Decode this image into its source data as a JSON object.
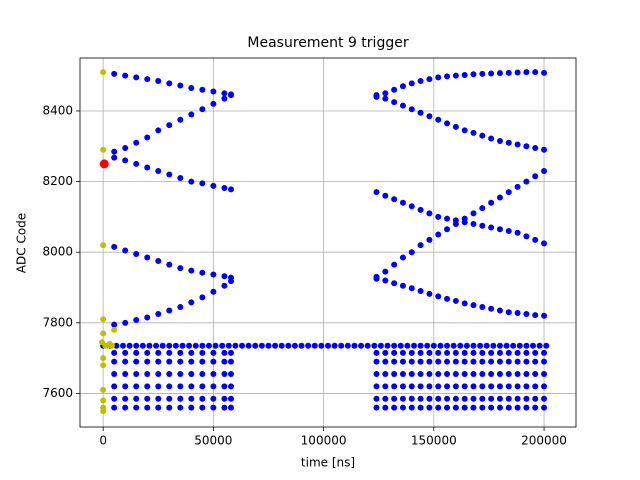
{
  "chart_data": {
    "type": "scatter",
    "title": "Measurement 9 trigger",
    "x_label": "time [ns]",
    "y_label": "ADC Code",
    "xlim": [
      -10500,
      214500
    ],
    "ylim": [
      7505,
      8550
    ],
    "xticks": [
      0,
      50000,
      100000,
      150000,
      200000
    ],
    "yticks": [
      7600,
      7800,
      8000,
      8200,
      8400
    ],
    "grid": true,
    "series": [
      {
        "color": "#0000ff",
        "x": [
          5000,
          10000,
          15000,
          20000,
          25000,
          30000,
          35000,
          40000,
          45000,
          50000,
          55000,
          58000
        ],
        "y": [
          8505,
          8500,
          8495,
          8490,
          8485,
          8478,
          8472,
          8465,
          8460,
          8455,
          8450,
          8447
        ]
      },
      {
        "color": "#0000ff",
        "x": [
          5000,
          10000,
          15000,
          20000,
          25000,
          30000,
          35000,
          40000,
          45000,
          50000,
          55000,
          58000
        ],
        "y": [
          8285,
          8295,
          8310,
          8325,
          8345,
          8360,
          8375,
          8390,
          8405,
          8420,
          8435,
          8445
        ]
      },
      {
        "color": "#0000ff",
        "x": [
          5000,
          10000,
          15000,
          20000,
          25000,
          30000,
          35000,
          40000,
          45000,
          50000,
          55000,
          58000
        ],
        "y": [
          8268,
          8260,
          8250,
          8240,
          8230,
          8220,
          8210,
          8200,
          8195,
          8188,
          8182,
          8178
        ]
      },
      {
        "color": "#0000ff",
        "x": [
          5000,
          10000,
          15000,
          20000,
          25000,
          30000,
          35000,
          40000,
          45000,
          50000,
          55000,
          58000
        ],
        "y": [
          8015,
          8005,
          7995,
          7985,
          7975,
          7965,
          7955,
          7948,
          7942,
          7937,
          7932,
          7928
        ]
      },
      {
        "color": "#0000ff",
        "x": [
          5000,
          10000,
          15000,
          20000,
          25000,
          30000,
          35000,
          40000,
          45000,
          50000,
          55000,
          58000
        ],
        "y": [
          7795,
          7800,
          7808,
          7815,
          7825,
          7835,
          7845,
          7858,
          7872,
          7888,
          7905,
          7918
        ]
      },
      {
        "color": "#0000ff",
        "x": [
          124000,
          128000,
          132000,
          136000,
          140000,
          144000,
          148000,
          152000,
          156000,
          160000,
          164000,
          168000,
          172000,
          176000,
          180000,
          184000,
          188000,
          192000,
          196000,
          200000
        ],
        "y": [
          8440,
          8450,
          8460,
          8470,
          8478,
          8485,
          8490,
          8495,
          8498,
          8500,
          8502,
          8504,
          8505,
          8506,
          8507,
          8508,
          8509,
          8510,
          8510,
          8508
        ]
      },
      {
        "color": "#0000ff",
        "x": [
          124000,
          128000,
          132000,
          136000,
          140000,
          144000,
          148000,
          152000,
          156000,
          160000,
          164000,
          168000,
          172000,
          176000,
          180000,
          184000,
          188000,
          192000,
          196000,
          200000
        ],
        "y": [
          8445,
          8435,
          8425,
          8415,
          8405,
          8395,
          8385,
          8375,
          8365,
          8355,
          8345,
          8338,
          8330,
          8322,
          8315,
          8310,
          8305,
          8300,
          8295,
          8290
        ]
      },
      {
        "color": "#0000ff",
        "x": [
          124000,
          128000,
          132000,
          136000,
          140000,
          144000,
          148000,
          152000,
          156000,
          160000,
          164000,
          168000,
          172000,
          176000,
          180000,
          184000,
          188000,
          192000,
          196000,
          200000
        ],
        "y": [
          8170,
          8160,
          8150,
          8140,
          8130,
          8120,
          8110,
          8100,
          8095,
          8090,
          8085,
          8080,
          8075,
          8070,
          8065,
          8060,
          8055,
          8045,
          8035,
          8025
        ]
      },
      {
        "color": "#0000ff",
        "x": [
          124000,
          128000,
          132000,
          136000,
          140000,
          144000,
          148000,
          152000,
          156000,
          160000,
          164000,
          168000,
          172000,
          176000,
          180000,
          184000,
          188000,
          192000,
          196000,
          200000
        ],
        "y": [
          7925,
          7945,
          7965,
          7985,
          8000,
          8020,
          8035,
          8050,
          8065,
          8080,
          8095,
          8110,
          8125,
          8140,
          8155,
          8170,
          8185,
          8200,
          8215,
          8230
        ]
      },
      {
        "color": "#0000ff",
        "x": [
          124000,
          128000,
          132000,
          136000,
          140000,
          144000,
          148000,
          152000,
          156000,
          160000,
          164000,
          168000,
          172000,
          176000,
          180000,
          184000,
          188000,
          192000,
          196000,
          200000
        ],
        "y": [
          7930,
          7920,
          7912,
          7905,
          7898,
          7890,
          7882,
          7875,
          7868,
          7862,
          7855,
          7850,
          7845,
          7840,
          7835,
          7830,
          7828,
          7825,
          7822,
          7820
        ]
      },
      {
        "color": "#0000ff",
        "x": [
          5000,
          10000,
          15000,
          20000,
          25000,
          30000,
          35000,
          40000,
          45000,
          50000,
          55000,
          58000,
          124000,
          128000,
          132000,
          136000,
          140000,
          144000,
          148000,
          152000,
          156000,
          160000,
          164000,
          168000,
          172000,
          176000,
          180000,
          184000,
          188000,
          192000,
          196000,
          200000
        ],
        "y": [
          7715,
          7715,
          7715,
          7715,
          7715,
          7715,
          7715,
          7715,
          7715,
          7715,
          7715,
          7715,
          7715,
          7715,
          7715,
          7715,
          7715,
          7715,
          7715,
          7715,
          7715,
          7715,
          7715,
          7715,
          7715,
          7715,
          7715,
          7715,
          7715,
          7715,
          7715,
          7715
        ]
      },
      {
        "color": "#0000ff",
        "x": [
          5000,
          10000,
          15000,
          20000,
          25000,
          30000,
          35000,
          40000,
          45000,
          50000,
          55000,
          58000,
          124000,
          128000,
          132000,
          136000,
          140000,
          144000,
          148000,
          152000,
          156000,
          160000,
          164000,
          168000,
          172000,
          176000,
          180000,
          184000,
          188000,
          192000,
          196000,
          200000
        ],
        "y": [
          7690,
          7690,
          7690,
          7690,
          7690,
          7690,
          7690,
          7690,
          7690,
          7690,
          7690,
          7690,
          7690,
          7690,
          7690,
          7690,
          7690,
          7690,
          7690,
          7690,
          7690,
          7690,
          7690,
          7690,
          7690,
          7690,
          7690,
          7690,
          7690,
          7690,
          7690,
          7690
        ]
      },
      {
        "color": "#0000ff",
        "x": [
          5000,
          10000,
          15000,
          20000,
          25000,
          30000,
          35000,
          40000,
          45000,
          50000,
          55000,
          58000,
          124000,
          128000,
          132000,
          136000,
          140000,
          144000,
          148000,
          152000,
          156000,
          160000,
          164000,
          168000,
          172000,
          176000,
          180000,
          184000,
          188000,
          192000,
          196000,
          200000
        ],
        "y": [
          7655,
          7655,
          7655,
          7655,
          7655,
          7655,
          7655,
          7655,
          7655,
          7655,
          7655,
          7655,
          7655,
          7655,
          7655,
          7655,
          7655,
          7655,
          7655,
          7655,
          7655,
          7655,
          7655,
          7655,
          7655,
          7655,
          7655,
          7655,
          7655,
          7655,
          7655,
          7655
        ]
      },
      {
        "color": "#0000ff",
        "x": [
          5000,
          10000,
          15000,
          20000,
          25000,
          30000,
          35000,
          40000,
          45000,
          50000,
          55000,
          58000,
          124000,
          128000,
          132000,
          136000,
          140000,
          144000,
          148000,
          152000,
          156000,
          160000,
          164000,
          168000,
          172000,
          176000,
          180000,
          184000,
          188000,
          192000,
          196000,
          200000
        ],
        "y": [
          7620,
          7620,
          7620,
          7620,
          7620,
          7620,
          7620,
          7620,
          7620,
          7620,
          7620,
          7620,
          7620,
          7620,
          7620,
          7620,
          7620,
          7620,
          7620,
          7620,
          7620,
          7620,
          7620,
          7620,
          7620,
          7620,
          7620,
          7620,
          7620,
          7620,
          7620,
          7620
        ]
      },
      {
        "color": "#0000ff",
        "x": [
          5000,
          10000,
          15000,
          20000,
          25000,
          30000,
          35000,
          40000,
          45000,
          50000,
          55000,
          58000,
          124000,
          128000,
          132000,
          136000,
          140000,
          144000,
          148000,
          152000,
          156000,
          160000,
          164000,
          168000,
          172000,
          176000,
          180000,
          184000,
          188000,
          192000,
          196000,
          200000
        ],
        "y": [
          7585,
          7585,
          7585,
          7585,
          7585,
          7585,
          7585,
          7585,
          7585,
          7585,
          7585,
          7585,
          7585,
          7585,
          7585,
          7585,
          7585,
          7585,
          7585,
          7585,
          7585,
          7585,
          7585,
          7585,
          7585,
          7585,
          7585,
          7585,
          7585,
          7585,
          7585,
          7585
        ]
      },
      {
        "color": "#0000ff",
        "x": [
          5000,
          10000,
          15000,
          20000,
          25000,
          30000,
          35000,
          40000,
          45000,
          50000,
          55000,
          58000,
          124000,
          128000,
          132000,
          136000,
          140000,
          144000,
          148000,
          152000,
          156000,
          160000,
          164000,
          168000,
          172000,
          176000,
          180000,
          184000,
          188000,
          192000,
          196000,
          200000
        ],
        "y": [
          7560,
          7560,
          7560,
          7560,
          7560,
          7560,
          7560,
          7560,
          7560,
          7560,
          7560,
          7560,
          7560,
          7560,
          7560,
          7560,
          7560,
          7560,
          7560,
          7560,
          7560,
          7560,
          7560,
          7560,
          7560,
          7560,
          7560,
          7560,
          7560,
          7560,
          7560,
          7560
        ]
      },
      {
        "color": "#0000ff",
        "x": [
          0,
          3000,
          6000,
          9000,
          12000,
          15000,
          18000,
          21000,
          24000,
          27000,
          30000,
          33000,
          36000,
          39000,
          42000,
          45000,
          48000,
          51000,
          54000,
          57000,
          60000,
          63000,
          66000,
          69000,
          72000,
          75000,
          78000,
          81000,
          84000,
          87000,
          90000,
          93000,
          96000,
          99000,
          102000,
          105000,
          108000,
          111000,
          114000,
          117000,
          120000,
          123000,
          126000,
          129000,
          132000,
          135000,
          138000,
          141000,
          144000,
          147000,
          150000,
          153000,
          156000,
          159000,
          162000,
          165000,
          168000,
          171000,
          174000,
          177000,
          180000,
          183000,
          186000,
          189000,
          192000,
          195000,
          198000,
          201000
        ],
        "y": [
          7735,
          7735,
          7735,
          7735,
          7735,
          7735,
          7735,
          7735,
          7735,
          7735,
          7735,
          7735,
          7735,
          7735,
          7735,
          7735,
          7735,
          7735,
          7735,
          7735,
          7735,
          7735,
          7735,
          7735,
          7735,
          7735,
          7735,
          7735,
          7735,
          7735,
          7735,
          7735,
          7735,
          7735,
          7735,
          7735,
          7735,
          7735,
          7735,
          7735,
          7735,
          7735,
          7735,
          7735,
          7735,
          7735,
          7735,
          7735,
          7735,
          7735,
          7735,
          7735,
          7735,
          7735,
          7735,
          7735,
          7735,
          7735,
          7735,
          7735,
          7735,
          7735,
          7735,
          7735,
          7735,
          7735,
          7735,
          7735
        ]
      },
      {
        "color": "#bfbf00",
        "x": [
          0,
          0,
          0,
          0,
          0,
          0,
          0,
          0,
          0,
          0,
          0,
          1000,
          2000,
          3000,
          4000,
          5000,
          -500
        ],
        "y": [
          8510,
          8290,
          8020,
          7810,
          7770,
          7700,
          7680,
          7610,
          7580,
          7560,
          7550,
          7735,
          7735,
          7740,
          7735,
          7780,
          7745
        ]
      },
      {
        "color": "#ff0000",
        "x": [
          500
        ],
        "y": [
          8250
        ]
      }
    ]
  }
}
